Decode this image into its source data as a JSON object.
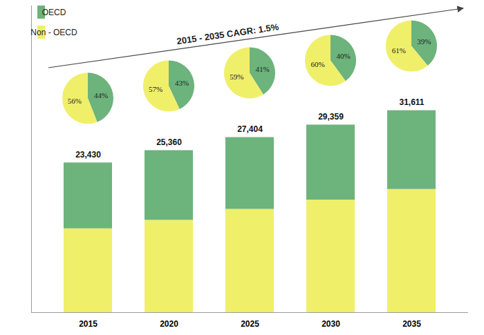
{
  "chart_data": [
    {
      "type": "bar",
      "stacked": true,
      "categories": [
        "2015",
        "2020",
        "2025",
        "2030",
        "2035"
      ],
      "series": [
        {
          "name": "OECD",
          "color": "#6db37c",
          "values": [
            10309,
            10905,
            11236,
            11744,
            12328
          ]
        },
        {
          "name": "Non - OECD",
          "color": "#f0ef6a",
          "values": [
            13121,
            14455,
            16168,
            17615,
            19283
          ]
        }
      ],
      "totals": [
        23430,
        25360,
        27404,
        29359,
        31611
      ],
      "total_labels": [
        "23,430",
        "25,360",
        "27,404",
        "29,359",
        "31,611"
      ],
      "annotation": "2015 - 2035 CAGR: 1.5%",
      "ylim": [
        0,
        48000
      ],
      "tick_labels": "x",
      "legend": "top-left"
    },
    {
      "type": "pie",
      "categories": [
        "OECD",
        "Non - OECD"
      ],
      "values": [
        44,
        56
      ],
      "value_labels": [
        "44%",
        "56%"
      ],
      "colors": [
        "#6db37c",
        "#f0ef6a"
      ],
      "data_labels": true
    },
    {
      "type": "pie",
      "categories": [
        "OECD",
        "Non - OECD"
      ],
      "values": [
        43,
        57
      ],
      "value_labels": [
        "43%",
        "57%"
      ],
      "colors": [
        "#6db37c",
        "#f0ef6a"
      ],
      "data_labels": true
    },
    {
      "type": "pie",
      "categories": [
        "OECD",
        "Non - OECD"
      ],
      "values": [
        41,
        59
      ],
      "value_labels": [
        "41%",
        "59%"
      ],
      "colors": [
        "#6db37c",
        "#f0ef6a"
      ],
      "data_labels": true
    },
    {
      "type": "pie",
      "categories": [
        "OECD",
        "Non - OECD"
      ],
      "values": [
        40,
        60
      ],
      "value_labels": [
        "40%",
        "60%"
      ],
      "colors": [
        "#6db37c",
        "#f0ef6a"
      ],
      "data_labels": true
    },
    {
      "type": "pie",
      "categories": [
        "OECD",
        "Non - OECD"
      ],
      "values": [
        39,
        61
      ],
      "value_labels": [
        "39%",
        "61%"
      ],
      "colors": [
        "#6db37c",
        "#f0ef6a"
      ],
      "data_labels": true
    }
  ]
}
